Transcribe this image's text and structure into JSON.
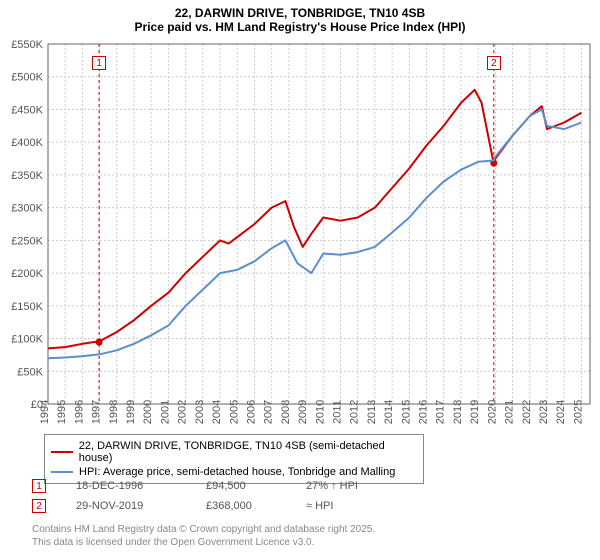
{
  "title": {
    "line1": "22, DARWIN DRIVE, TONBRIDGE, TN10 4SB",
    "line2": "Price paid vs. HM Land Registry's House Price Index (HPI)"
  },
  "chart": {
    "type": "line",
    "background_color": "#ffffff",
    "plot_background_color": "#ffffff",
    "grid_color": "#cccccc",
    "grid_dash": "2,2",
    "axis_color": "#666666",
    "tick_font_size": 11,
    "tick_color": "#555555",
    "xlim": [
      1994,
      2025.5
    ],
    "ylim": [
      0,
      550000
    ],
    "x_ticks": [
      1994,
      1995,
      1996,
      1997,
      1998,
      1999,
      2000,
      2001,
      2002,
      2003,
      2004,
      2005,
      2006,
      2007,
      2008,
      2009,
      2010,
      2011,
      2012,
      2013,
      2014,
      2015,
      2016,
      2017,
      2018,
      2019,
      2020,
      2021,
      2022,
      2023,
      2024,
      2025
    ],
    "x_tick_labels": [
      "1994",
      "1995",
      "1996",
      "1997",
      "1998",
      "1999",
      "2000",
      "2001",
      "2002",
      "2003",
      "2004",
      "2005",
      "2006",
      "2007",
      "2008",
      "2009",
      "2010",
      "2011",
      "2012",
      "2013",
      "2014",
      "2015",
      "2016",
      "2017",
      "2018",
      "2019",
      "2020",
      "2021",
      "2022",
      "2023",
      "2024",
      "2025"
    ],
    "y_ticks": [
      0,
      50000,
      100000,
      150000,
      200000,
      250000,
      300000,
      350000,
      400000,
      450000,
      500000,
      550000
    ],
    "y_tick_labels": [
      "£0",
      "£50K",
      "£100K",
      "£150K",
      "£200K",
      "£250K",
      "£300K",
      "£350K",
      "£400K",
      "£450K",
      "£500K",
      "£550K"
    ],
    "marker_line_color": "#cc0000",
    "marker_line_dash": "3,3",
    "marker_dot_radius": 3.5,
    "series": [
      {
        "name": "price_paid",
        "color": "#cc0000",
        "line_width": 2,
        "x": [
          1994,
          1995,
          1996,
          1997,
          1998,
          1999,
          2000,
          2001,
          2002,
          2003,
          2004,
          2004.5,
          2005,
          2006,
          2007,
          2007.8,
          2008.3,
          2008.8,
          2009.3,
          2010,
          2011,
          2012,
          2013,
          2014,
          2015,
          2016,
          2017,
          2018,
          2018.8,
          2019.2,
          2019.9,
          2020,
          2021,
          2022,
          2022.7,
          2023,
          2024,
          2025
        ],
        "y": [
          85000,
          87000,
          92000,
          96000,
          110000,
          128000,
          150000,
          170000,
          200000,
          225000,
          250000,
          245000,
          255000,
          275000,
          300000,
          310000,
          270000,
          240000,
          260000,
          285000,
          280000,
          285000,
          300000,
          330000,
          360000,
          395000,
          425000,
          460000,
          480000,
          460000,
          368000,
          375000,
          410000,
          440000,
          455000,
          420000,
          430000,
          445000
        ]
      },
      {
        "name": "hpi",
        "color": "#5b8fcf",
        "line_width": 2,
        "x": [
          1994,
          1995,
          1996,
          1997,
          1998,
          1999,
          2000,
          2001,
          2002,
          2003,
          2004,
          2005,
          2006,
          2007,
          2007.8,
          2008.5,
          2009.3,
          2010,
          2011,
          2012,
          2013,
          2014,
          2015,
          2016,
          2017,
          2018,
          2019,
          2019.9,
          2020,
          2021,
          2022,
          2022.7,
          2023,
          2024,
          2025
        ],
        "y": [
          70000,
          71000,
          73000,
          76000,
          82000,
          92000,
          105000,
          120000,
          150000,
          175000,
          200000,
          205000,
          218000,
          238000,
          250000,
          215000,
          200000,
          230000,
          228000,
          232000,
          240000,
          262000,
          285000,
          315000,
          340000,
          358000,
          370000,
          372000,
          378000,
          410000,
          440000,
          450000,
          425000,
          420000,
          430000
        ]
      }
    ]
  },
  "markers": [
    {
      "num": "1",
      "x": 1996.97,
      "y": 94500,
      "date": "18-DEC-1996",
      "price": "£94,500",
      "hpi": "27% ↑ HPI"
    },
    {
      "num": "2",
      "x": 2019.91,
      "y": 368000,
      "date": "29-NOV-2019",
      "price": "£368,000",
      "hpi": "≈ HPI"
    }
  ],
  "legend": {
    "series1": "22, DARWIN DRIVE, TONBRIDGE, TN10 4SB (semi-detached house)",
    "series2": "HPI: Average price, semi-detached house, Tonbridge and Malling"
  },
  "footer": {
    "line1": "Contains HM Land Registry data © Crown copyright and database right 2025.",
    "line2": "This data is licensed under the Open Government Licence v3.0."
  }
}
